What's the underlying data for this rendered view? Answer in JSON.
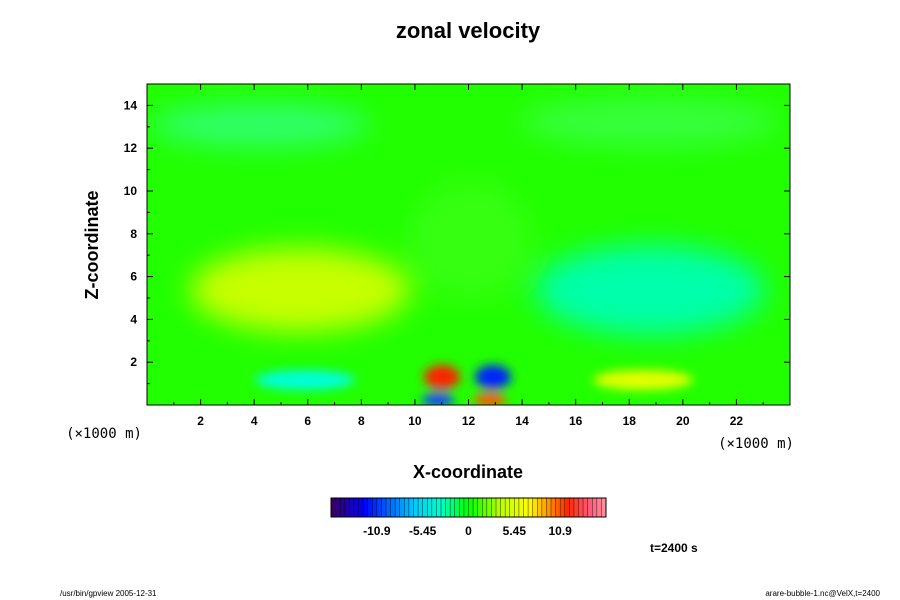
{
  "chart_data": {
    "type": "heatmap",
    "title": "zonal velocity",
    "xlabel": "X-coordinate",
    "ylabel": "Z-coordinate",
    "x_unit": "(×1000 m)",
    "y_unit": "(×1000 m)",
    "xlim": [
      0,
      24
    ],
    "ylim": [
      0,
      15
    ],
    "x_ticks": [
      "2",
      "4",
      "6",
      "8",
      "10",
      "12",
      "14",
      "16",
      "18",
      "20",
      "22"
    ],
    "y_ticks": [
      "2",
      "4",
      "6",
      "8",
      "10",
      "12",
      "14"
    ],
    "colorbar": {
      "min": -16.35,
      "max": 16.35,
      "tick_labels": [
        "-10.9",
        "-5.45",
        "0",
        "5.45",
        "10.9"
      ]
    },
    "features": [
      {
        "x": 6,
        "z": 1.3,
        "value": -4
      },
      {
        "x": 18,
        "z": 1.3,
        "value": 4
      },
      {
        "x": 11,
        "z": 1.3,
        "value": 12
      },
      {
        "x": 13,
        "z": 1.3,
        "value": -12
      },
      {
        "x": 11,
        "z": 0.3,
        "value": -10
      },
      {
        "x": 13,
        "z": 0.3,
        "value": 10
      },
      {
        "x": 6,
        "z": 5.5,
        "value": 2
      },
      {
        "x": 18.5,
        "z": 5.5,
        "value": -3
      }
    ],
    "time_label": "t=2400 s",
    "footer_left": "/usr/bin/gpview 2005-12-31",
    "footer_right": "arare-bubble-1.nc@VelX,t=2400"
  },
  "colors": {
    "background": "#ffffff",
    "field_zero": "#00ff00"
  }
}
